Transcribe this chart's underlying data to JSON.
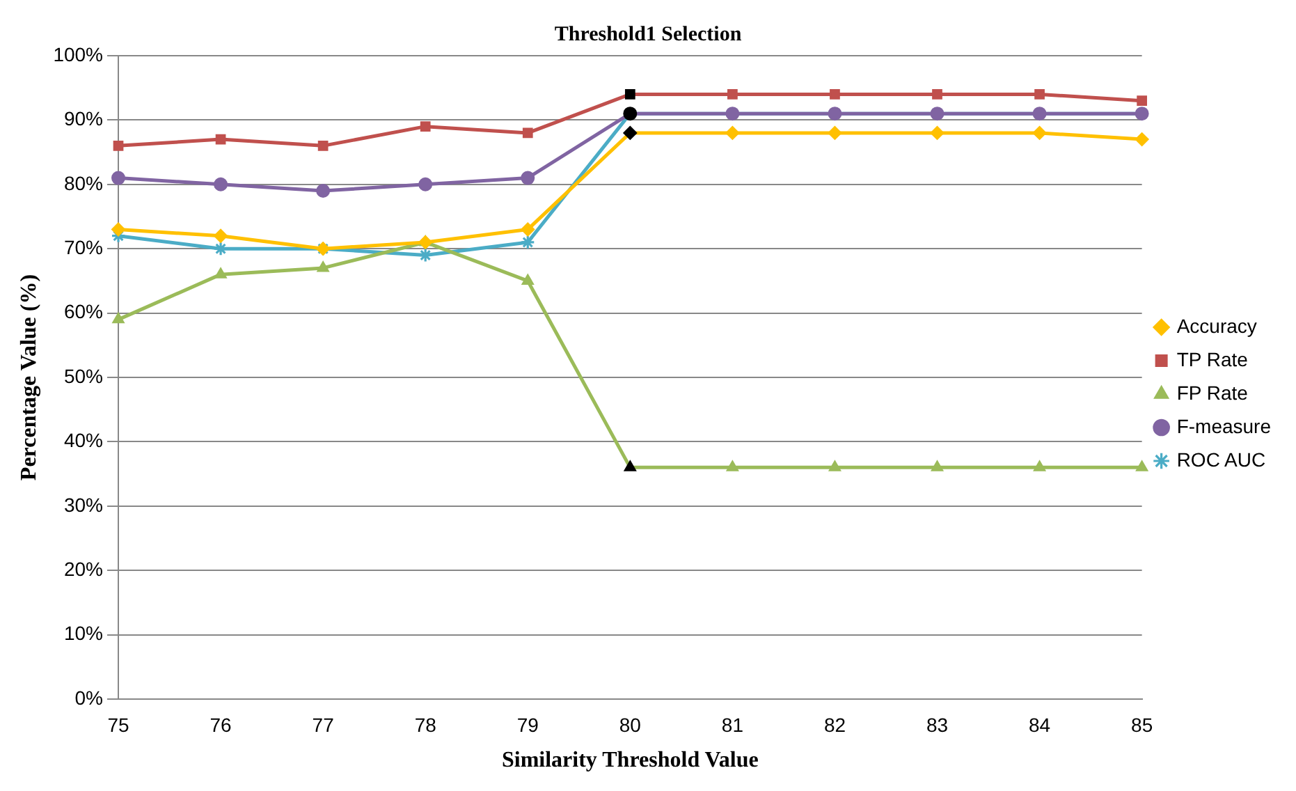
{
  "chart_data": {
    "type": "line",
    "title": "Threshold1 Selection",
    "xlabel": "Similarity Threshold Value",
    "ylabel": "Percentage Value (%)",
    "categories": [
      "75",
      "76",
      "77",
      "78",
      "79",
      "80",
      "81",
      "82",
      "83",
      "84",
      "85"
    ],
    "series": [
      {
        "name": "Accuracy",
        "color": "#ffc000",
        "marker": "diamond",
        "colors": [
          "#ffc000",
          "#ffc000",
          "#ffc000",
          "#ffc000",
          "#ffc000",
          "#000000",
          "#ffc000",
          "#ffc000",
          "#ffc000",
          "#ffc000",
          "#ffc000"
        ],
        "values": [
          73,
          72,
          70,
          71,
          73,
          88,
          88,
          88,
          88,
          88,
          87
        ]
      },
      {
        "name": "TP Rate",
        "color": "#c0504d",
        "marker": "square",
        "colors": [
          "#c0504d",
          "#c0504d",
          "#c0504d",
          "#c0504d",
          "#c0504d",
          "#000000",
          "#c0504d",
          "#c0504d",
          "#c0504d",
          "#c0504d",
          "#c0504d"
        ],
        "values": [
          86,
          87,
          86,
          89,
          88,
          94,
          94,
          94,
          94,
          94,
          93
        ]
      },
      {
        "name": "FP Rate",
        "color": "#9bbb59",
        "marker": "triangle",
        "colors": [
          "#9bbb59",
          "#9bbb59",
          "#9bbb59",
          "#9bbb59",
          "#9bbb59",
          "#000000",
          "#9bbb59",
          "#9bbb59",
          "#9bbb59",
          "#9bbb59",
          "#9bbb59"
        ],
        "values": [
          59,
          66,
          67,
          71,
          65,
          36,
          36,
          36,
          36,
          36,
          36
        ]
      },
      {
        "name": "F-measure",
        "color": "#8064a2",
        "marker": "circle",
        "colors": [
          "#8064a2",
          "#8064a2",
          "#8064a2",
          "#8064a2",
          "#8064a2",
          "#000000",
          "#8064a2",
          "#8064a2",
          "#8064a2",
          "#8064a2",
          "#8064a2"
        ],
        "values": [
          81,
          80,
          79,
          80,
          81,
          91,
          91,
          91,
          91,
          91,
          91
        ]
      },
      {
        "name": "ROC AUC",
        "color": "#4bacc6",
        "marker": "cross",
        "colors": [
          "#4bacc6",
          "#4bacc6",
          "#4bacc6",
          "#4bacc6",
          "#4bacc6",
          "#000000",
          "#4bacc6",
          "#4bacc6",
          "#4bacc6",
          "#4bacc6",
          "#4bacc6"
        ],
        "values": [
          72,
          70,
          70,
          69,
          71,
          91,
          91,
          91,
          91,
          91,
          91
        ]
      }
    ],
    "ylim": [
      0,
      100
    ],
    "yticks": [
      {
        "value": 0,
        "label": "0%"
      },
      {
        "value": 10,
        "label": "10%"
      },
      {
        "value": 20,
        "label": "20%"
      },
      {
        "value": 30,
        "label": "30%"
      },
      {
        "value": 40,
        "label": "40%"
      },
      {
        "value": 50,
        "label": "50%"
      },
      {
        "value": 60,
        "label": "60%"
      },
      {
        "value": 70,
        "label": "70%"
      },
      {
        "value": 80,
        "label": "80%"
      },
      {
        "value": 90,
        "label": "90%"
      },
      {
        "value": 100,
        "label": "100%"
      }
    ],
    "grid": "y",
    "legend": "right"
  }
}
